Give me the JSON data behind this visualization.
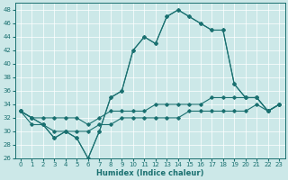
{
  "xlabel": "Humidex (Indice chaleur)",
  "xlim": [
    -0.5,
    23.5
  ],
  "ylim": [
    26,
    49
  ],
  "yticks": [
    26,
    28,
    30,
    32,
    34,
    36,
    38,
    40,
    42,
    44,
    46,
    48
  ],
  "xticks": [
    0,
    1,
    2,
    3,
    4,
    5,
    6,
    7,
    8,
    9,
    10,
    11,
    12,
    13,
    14,
    15,
    16,
    17,
    18,
    19,
    20,
    21,
    22,
    23
  ],
  "bg_color": "#cce8e8",
  "line_color": "#1a7070",
  "line1": [
    33,
    32,
    31,
    29,
    30,
    29,
    26,
    30,
    35,
    36,
    42,
    44,
    43,
    47,
    48,
    47,
    46,
    45,
    45,
    37,
    35,
    35,
    33,
    34
  ],
  "line2": [
    33,
    32,
    31,
    29,
    30,
    29,
    26,
    30,
    35,
    36,
    42,
    44,
    43,
    47,
    48,
    47,
    46,
    45,
    45,
    37,
    35,
    35,
    33,
    34
  ],
  "line3": [
    33,
    32,
    32,
    32,
    32,
    32,
    31,
    32,
    33,
    33,
    33,
    33,
    34,
    34,
    34,
    34,
    34,
    35,
    35,
    35,
    35,
    35,
    33,
    34
  ],
  "line4": [
    33,
    31,
    31,
    30,
    30,
    30,
    30,
    31,
    31,
    32,
    32,
    32,
    32,
    32,
    32,
    33,
    33,
    33,
    33,
    33,
    33,
    34,
    33,
    34
  ],
  "tick_fontsize": 5,
  "xlabel_fontsize": 6,
  "lw": 0.8,
  "marker_size": 1.8
}
